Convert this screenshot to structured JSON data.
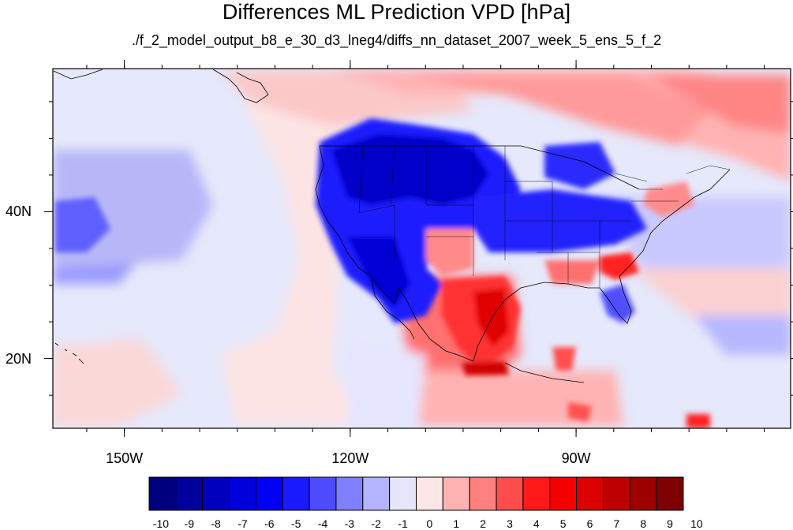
{
  "title": "Differences ML Prediction VPD [hPa]",
  "subtitle": "./f_2_model_output_b8_e_30_d3_lneg4/diffs_nn_dataset_2007_week_5_ens_5_f_2",
  "map": {
    "lon_range": [
      -159.5,
      -61.5
    ],
    "lat_range": [
      10.5,
      59.5
    ],
    "lon_labels": [
      {
        "lon": -150,
        "text": "150W"
      },
      {
        "lon": -120,
        "text": "120W"
      },
      {
        "lon": -90,
        "text": "90W"
      }
    ],
    "lat_labels": [
      {
        "lat": 40,
        "text": "40N"
      },
      {
        "lat": 20,
        "text": "20N"
      }
    ],
    "background_color": "#e6e8fb"
  },
  "colorbar": {
    "labels": [
      "-10",
      "-9",
      "-8",
      "-7",
      "-6",
      "-5",
      "-4",
      "-3",
      "-2",
      "-1",
      "0",
      "1",
      "2",
      "3",
      "4",
      "5",
      "6",
      "7",
      "8",
      "9",
      "10"
    ],
    "colors": [
      "#00007f",
      "#00009e",
      "#0000bd",
      "#0000dc",
      "#0000f5",
      "#1a1aff",
      "#4d4dff",
      "#7f7fff",
      "#b3b3ff",
      "#e6e6fb",
      "#fde6e6",
      "#ffb3b3",
      "#ff8080",
      "#ff4d4d",
      "#ff1a1a",
      "#f50000",
      "#dc0000",
      "#bd0000",
      "#9e0000",
      "#7f0000"
    ]
  }
}
